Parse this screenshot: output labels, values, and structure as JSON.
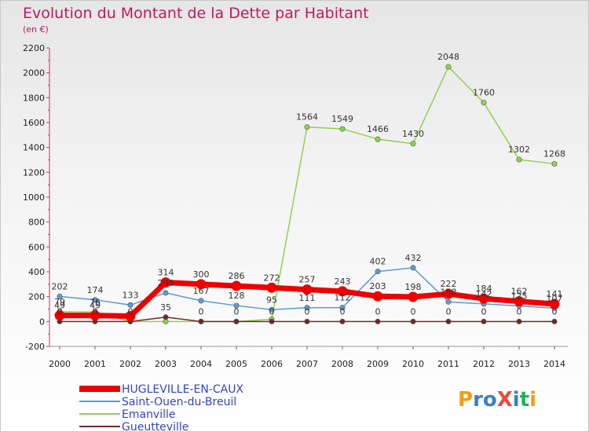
{
  "chart_data": {
    "type": "line",
    "title": "Evolution du Montant de la Dette par Habitant",
    "subtitle": "(en €)",
    "x": [
      "2000",
      "2001",
      "2002",
      "2003",
      "2004",
      "2005",
      "2006",
      "2007",
      "2008",
      "2009",
      "2010",
      "2011",
      "2012",
      "2013",
      "2014"
    ],
    "ylim": [
      -200,
      2200
    ],
    "yticks": [
      -200,
      0,
      200,
      400,
      600,
      800,
      1000,
      1200,
      1400,
      1600,
      1800,
      2000,
      2200
    ],
    "grid": false,
    "legend_position": "bottom-left",
    "series": [
      {
        "name": "HUGLEVILLE-EN-CAUX",
        "color": "#ee0000",
        "values": [
          49,
          49,
          43,
          314,
          300,
          286,
          272,
          257,
          243,
          203,
          198,
          222,
          184,
          162,
          141
        ],
        "labels": [
          "49",
          "49",
          "",
          "314",
          "300",
          "286",
          "272",
          "257",
          "243",
          "203",
          "198",
          "222",
          "184",
          "162",
          "141"
        ]
      },
      {
        "name": "Saint-Ouen-du-Breuil",
        "color": "#5b9bd5",
        "values": [
          202,
          174,
          133,
          230,
          167,
          128,
          95,
          111,
          112,
          402,
          432,
          158,
          142,
          125,
          107
        ],
        "labels": [
          "202",
          "174",
          "133",
          "230",
          "167",
          "128",
          "95",
          "111",
          "112",
          "402",
          "432",
          "158",
          "142",
          "125",
          "107"
        ]
      },
      {
        "name": "Emanville",
        "color": "#8fd14f",
        "values": [
          79,
          76,
          0,
          0,
          0,
          0,
          19,
          1564,
          1549,
          1466,
          1430,
          2048,
          1760,
          1302,
          1268
        ],
        "labels": [
          "79",
          "76",
          "",
          "",
          "",
          "",
          "",
          "1564",
          "1549",
          "1466",
          "1430",
          "2048",
          "1760",
          "1302",
          "1268"
        ]
      },
      {
        "name": "Gueutteville",
        "color": "#6b2a2a",
        "values": [
          0,
          0,
          0,
          35,
          0,
          0,
          0,
          0,
          0,
          0,
          0,
          0,
          0,
          0,
          0
        ],
        "labels": [
          "0",
          "0",
          "0",
          "35",
          "0",
          "0",
          "0",
          "0",
          "0",
          "0",
          "0",
          "0",
          "0",
          "0",
          "0"
        ]
      }
    ]
  },
  "logo": {
    "text": "ProXiti"
  }
}
